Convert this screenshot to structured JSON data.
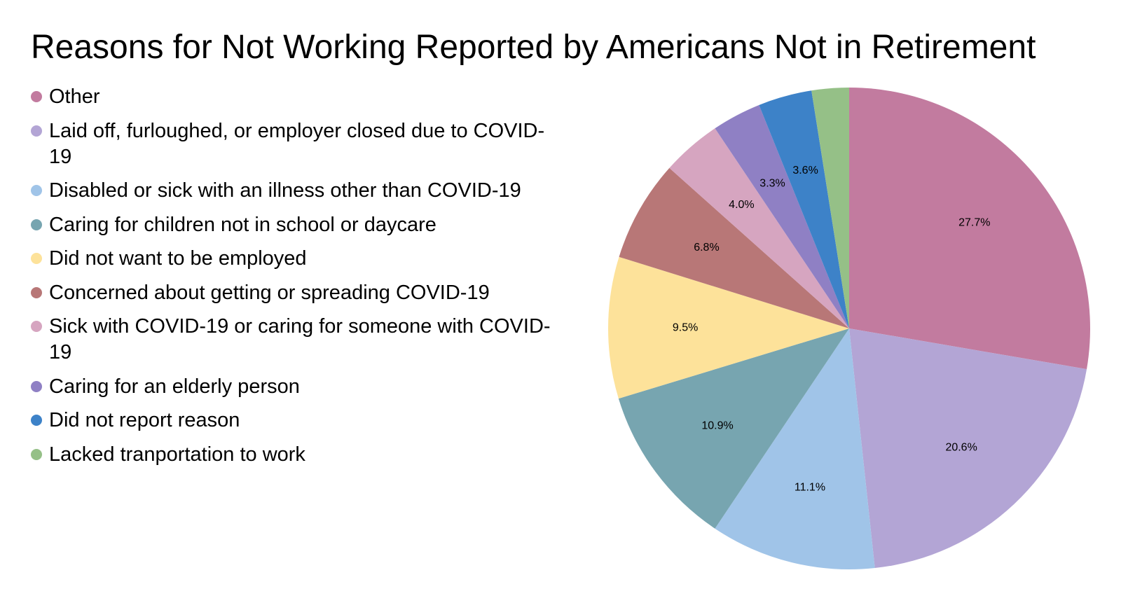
{
  "chart_data": {
    "type": "pie",
    "title": "Reasons for Not Working Reported by Americans Not in Retirement",
    "legend_position": "left",
    "slices": [
      {
        "label": "Other",
        "value": 27.7,
        "display": "27.7%",
        "color": "#c27b9f"
      },
      {
        "label": "Laid off, furloughed, or employer closed due to COVID-19",
        "value": 20.6,
        "display": "20.6%",
        "color": "#b3a5d5"
      },
      {
        "label": "Disabled or sick with an illness other than COVID-19",
        "value": 11.1,
        "display": "11.1%",
        "color": "#a0c4e8"
      },
      {
        "label": "Caring for children not in school or daycare",
        "value": 10.9,
        "display": "10.9%",
        "color": "#77a5b0"
      },
      {
        "label": "Did not want to be employed",
        "value": 9.5,
        "display": "9.5%",
        "color": "#fde29a"
      },
      {
        "label": "Concerned about getting or spreading COVID-19",
        "value": 6.8,
        "display": "6.8%",
        "color": "#b87777"
      },
      {
        "label": "Sick with COVID-19 or caring for someone with COVID-19",
        "value": 4.0,
        "display": "4.0%",
        "color": "#d6a5c0"
      },
      {
        "label": "Caring for an elderly person",
        "value": 3.3,
        "display": "3.3%",
        "color": "#8f80c4"
      },
      {
        "label": "Did not report reason",
        "value": 3.6,
        "display": "3.6%",
        "color": "#3d82c8"
      },
      {
        "label": "Lacked tranportation to work",
        "value": 2.5,
        "display": "",
        "color": "#95c087"
      }
    ]
  }
}
